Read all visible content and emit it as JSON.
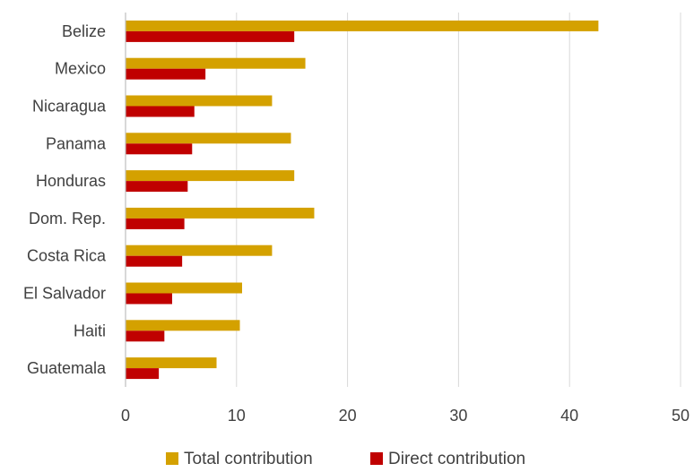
{
  "chart_data": {
    "type": "bar",
    "orientation": "horizontal",
    "title": "",
    "xlabel": "",
    "ylabel": "",
    "categories": [
      "Belize",
      "Mexico",
      "Nicaragua",
      "Panama",
      "Honduras",
      "Dom. Rep.",
      "Costa Rica",
      "El Salvador",
      "Haiti",
      "Guatemala"
    ],
    "series": [
      {
        "name": "Total contribution",
        "color": "#D4A100",
        "values": [
          42.6,
          16.2,
          13.2,
          14.9,
          15.2,
          17.0,
          13.2,
          10.5,
          10.3,
          8.2
        ]
      },
      {
        "name": "Direct contribution",
        "color": "#C00000",
        "values": [
          15.2,
          7.2,
          6.2,
          6.0,
          5.6,
          5.3,
          5.1,
          4.2,
          3.5,
          3.0
        ]
      }
    ],
    "xlim": [
      0,
      50
    ],
    "xticks": [
      "0",
      "10",
      "20",
      "30",
      "40",
      "50"
    ],
    "grid": true,
    "legend_position": "bottom"
  }
}
